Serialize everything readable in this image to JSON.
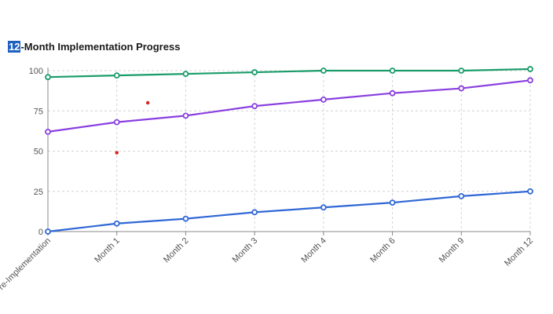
{
  "chart_data": {
    "type": "line",
    "title_highlight": "12",
    "title_rest": "-Month Implementation Progress",
    "categories": [
      "Pre-Implementation",
      "Month 1",
      "Month 2",
      "Month 3",
      "Month 4",
      "Month 6",
      "Month 9",
      "Month 12"
    ],
    "ylim": [
      0,
      100
    ],
    "yticks": [
      0,
      25,
      50,
      75,
      100
    ],
    "grid": true,
    "series": [
      {
        "color": "#1a9c6b",
        "values": [
          96,
          97,
          98,
          99,
          100,
          100,
          100,
          101
        ]
      },
      {
        "color": "#8a3fe0",
        "values": [
          62,
          68,
          72,
          78,
          82,
          86,
          89,
          94
        ]
      },
      {
        "color": "#3067d6",
        "values": [
          0,
          5,
          8,
          12,
          15,
          18,
          22,
          25
        ]
      }
    ],
    "extra_points": [
      {
        "x": 1.45,
        "y": 80,
        "color": "#d62020"
      },
      {
        "x": 1.0,
        "y": 49,
        "color": "#d62020"
      }
    ]
  }
}
